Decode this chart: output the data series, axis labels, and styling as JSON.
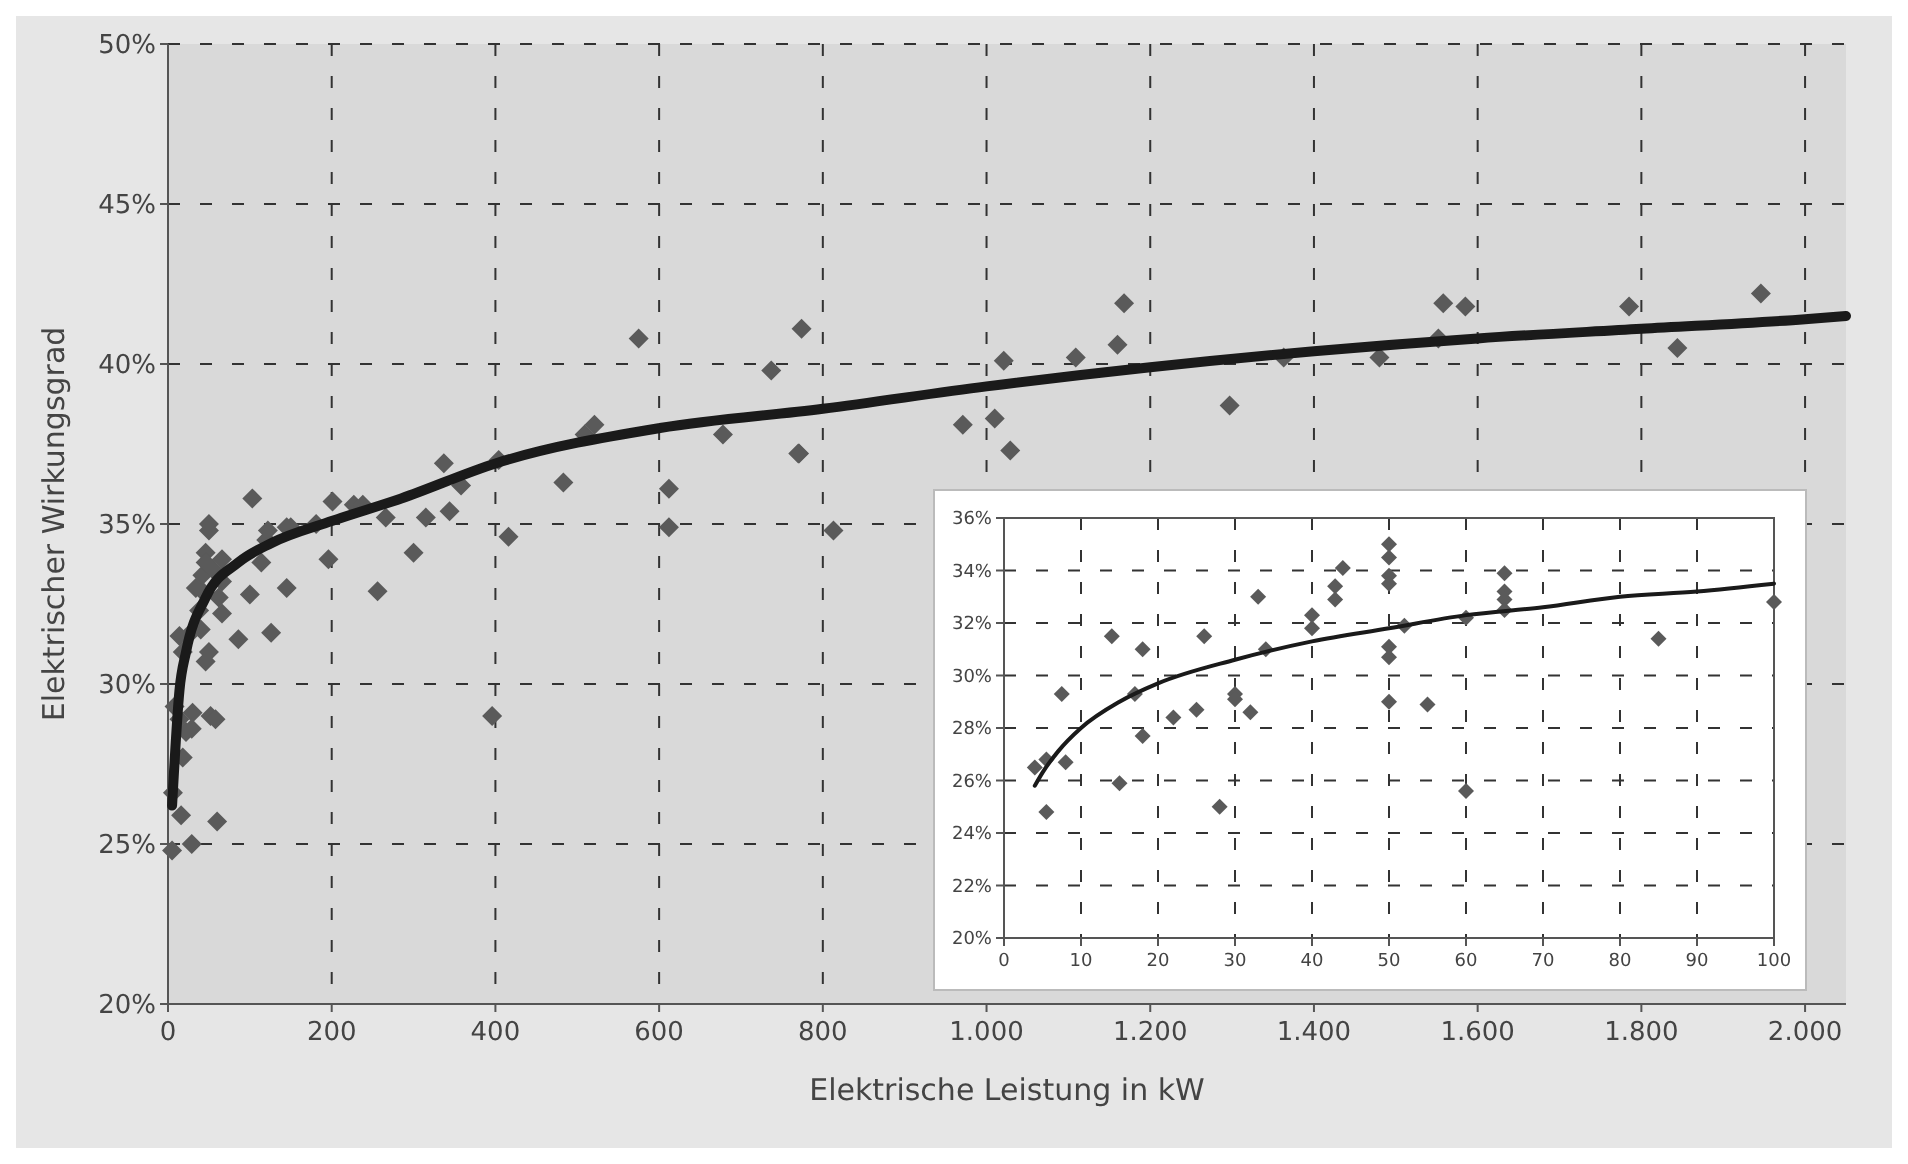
{
  "chart_data": [
    {
      "type": "scatter",
      "xlabel": "Elektrische Leistung in kW",
      "ylabel": "Elektrischer Wirkungsgrad",
      "xlim": [
        0,
        2050
      ],
      "ylim": [
        20,
        50
      ],
      "xticks": [
        0,
        200,
        400,
        600,
        800,
        {
          "value": 1000,
          "label": "1.000"
        },
        {
          "value": 1200,
          "label": "1.200"
        },
        {
          "value": 1400,
          "label": "1.400"
        },
        {
          "value": 1600,
          "label": "1.600"
        },
        {
          "value": 1800,
          "label": "1.800"
        },
        {
          "value": 2000,
          "label": "2.000"
        }
      ],
      "yticks": [
        {
          "value": 20,
          "label": "20%"
        },
        {
          "value": 25,
          "label": "25%"
        },
        {
          "value": 30,
          "label": "30%"
        },
        {
          "value": 35,
          "label": "35%"
        },
        {
          "value": 40,
          "label": "40%"
        },
        {
          "value": 45,
          "label": "45%"
        },
        {
          "value": 50,
          "label": "50%"
        }
      ],
      "grid": true,
      "series": [
        {
          "type": "scatter",
          "marker": "diamond",
          "color": "#5a5a5a",
          "x": [
            5,
            16,
            29,
            60,
            6,
            18,
            8,
            14,
            22,
            30,
            29,
            52,
            58,
            14,
            24,
            18,
            38,
            40,
            46,
            50,
            34,
            42,
            42,
            46,
            50,
            50,
            46,
            54,
            66,
            66,
            62,
            66,
            86,
            103,
            100,
            114,
            120,
            122,
            126,
            145,
            145,
            150,
            181,
            196,
            201,
            227,
            238,
            256,
            266,
            300,
            315,
            344,
            337,
            358,
            396,
            404,
            416,
            483,
            509,
            521,
            575,
            612,
            612,
            678,
            737,
            771,
            774,
            770,
            813,
            971,
            1010,
            1021,
            1029,
            1109,
            1160,
            1168,
            1297,
            1363,
            1480,
            1552,
            1558,
            1585,
            1785,
            1844,
            1946
          ],
          "values": [
            24.8,
            25.9,
            25.0,
            25.7,
            26.6,
            27.7,
            29.3,
            28.9,
            28.5,
            29.1,
            28.6,
            29.0,
            28.9,
            31.5,
            31.5,
            31.0,
            32.3,
            31.7,
            30.7,
            31.0,
            33.0,
            32.9,
            33.4,
            34.1,
            34.8,
            35.0,
            33.8,
            33.6,
            33.9,
            33.2,
            32.7,
            32.2,
            31.4,
            35.8,
            32.8,
            33.8,
            34.5,
            34.8,
            31.6,
            33.0,
            34.9,
            34.9,
            35.0,
            33.9,
            35.7,
            35.6,
            35.6,
            32.9,
            35.2,
            34.1,
            35.2,
            35.4,
            36.9,
            36.2,
            29.0,
            37.0,
            34.6,
            36.3,
            37.8,
            38.1,
            40.8,
            36.1,
            34.9,
            37.8,
            39.8,
            37.2,
            41.1,
            37.2,
            34.8,
            38.1,
            38.3,
            40.1,
            37.3,
            40.2,
            40.6,
            41.9,
            38.7,
            40.2,
            40.2,
            40.8,
            41.9,
            41.8,
            41.8,
            40.5,
            42.2
          ]
        },
        {
          "type": "line",
          "color": "#1a1a1a",
          "line_style": "solid",
          "x": [
            5,
            14,
            22,
            46,
            86,
            126,
            201,
            285,
            401,
            601,
            800,
            1000,
            1200,
            1400,
            1600,
            1800,
            2000,
            2050
          ],
          "values": [
            26.2,
            29.8,
            31.0,
            32.7,
            33.8,
            34.4,
            35.1,
            35.8,
            36.9,
            38.0,
            38.6,
            39.3,
            39.9,
            40.4,
            40.8,
            41.1,
            41.4,
            41.5
          ]
        }
      ]
    },
    {
      "type": "scatter",
      "xlim": [
        0,
        100
      ],
      "ylim": [
        20,
        36
      ],
      "xticks": [
        0,
        10,
        20,
        30,
        40,
        50,
        60,
        70,
        80,
        90,
        100
      ],
      "yticks": [
        {
          "value": 20,
          "label": "20%"
        },
        {
          "value": 22,
          "label": "22%"
        },
        {
          "value": 24,
          "label": "24%"
        },
        {
          "value": 26,
          "label": "26%"
        },
        {
          "value": 28,
          "label": "28%"
        },
        {
          "value": 30,
          "label": "30%"
        },
        {
          "value": 32,
          "label": "32%"
        },
        {
          "value": 34,
          "label": "34%"
        },
        {
          "value": 36,
          "label": "36%"
        }
      ],
      "grid": true,
      "series": [
        {
          "type": "scatter",
          "marker": "diamond",
          "color": "#5a5a5a",
          "x": [
            4,
            5.5,
            5.5,
            7.5,
            8,
            14,
            15,
            17,
            18,
            18,
            22,
            25,
            26,
            28,
            30,
            30,
            32,
            33,
            34,
            40,
            40,
            43,
            43,
            44,
            50,
            50,
            50,
            50,
            50,
            50,
            50,
            52,
            55,
            60,
            60,
            65,
            65,
            65,
            65,
            85,
            100
          ],
          "values": [
            26.5,
            26.8,
            24.8,
            29.3,
            26.7,
            31.5,
            25.9,
            29.3,
            31.0,
            27.7,
            28.4,
            28.7,
            31.5,
            25.0,
            29.3,
            29.1,
            28.6,
            33.0,
            31.0,
            32.3,
            31.8,
            33.4,
            32.9,
            34.1,
            35.0,
            34.5,
            33.8,
            33.5,
            31.1,
            30.7,
            29.0,
            31.9,
            28.9,
            32.2,
            25.6,
            33.9,
            33.2,
            32.9,
            32.5,
            31.4,
            32.8
          ]
        },
        {
          "type": "line",
          "color": "#1a1a1a",
          "line_style": "solid",
          "x": [
            4,
            5,
            7,
            10,
            15,
            20,
            30,
            40,
            50,
            60,
            70,
            80,
            90,
            100
          ],
          "values": [
            25.8,
            26.3,
            27.1,
            28.0,
            29.0,
            29.7,
            30.6,
            31.3,
            31.8,
            32.3,
            32.6,
            33.0,
            33.2,
            33.5
          ]
        }
      ]
    }
  ]
}
